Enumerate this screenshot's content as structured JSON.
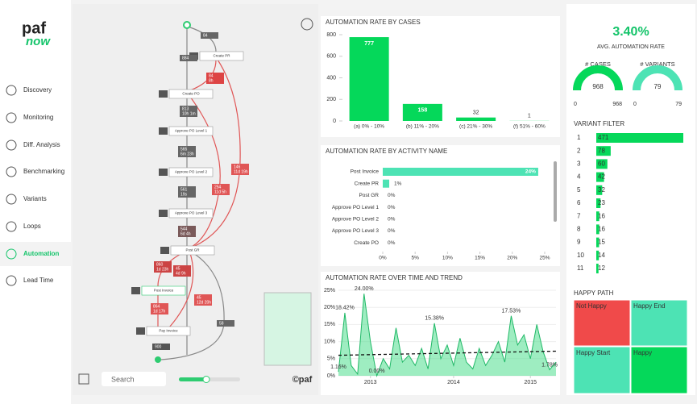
{
  "logo": {
    "top": "paf",
    "bottom": "now"
  },
  "nav": [
    "Discovery",
    "Monitoring",
    "Diff. Analysis",
    "Benchmarking",
    "Variants",
    "Loops",
    "Automation",
    "Lead Time"
  ],
  "process_map": {
    "nodes": [
      "Create PR",
      "Create PO",
      "Approve PO Level 1",
      "Approve PO Level 2",
      "Approve PO Level 3",
      "Post GR",
      "Post Invoice",
      "Pay Invoice"
    ],
    "edges": [
      {
        "count": "84"
      },
      {
        "count": "884"
      },
      {
        "count": "84",
        "time": "8h"
      },
      {
        "count": "813",
        "time": "10h 1m"
      },
      {
        "count": "565",
        "time": "6m 23h"
      },
      {
        "count": "561",
        "time": "19s"
      },
      {
        "count": "544",
        "time": "6d 4h"
      },
      {
        "count": "254",
        "time": "11d 5h"
      },
      {
        "count": "146",
        "time": "11d 19h"
      },
      {
        "count": "860",
        "time": "1d 23h"
      },
      {
        "count": "45",
        "time": "4d 9h"
      },
      {
        "count": "864",
        "time": "1d 17h"
      },
      {
        "count": "45",
        "time": "12d 20h"
      },
      {
        "count": "58"
      },
      {
        "count": "900"
      }
    ],
    "search_placeholder": "Search",
    "copyright": "©paf"
  },
  "charts": [
    {
      "type": "bar",
      "title": "AUTOMATION RATE BY CASES",
      "categories": [
        "(a) 0% - 10%",
        "(b) 11% - 20%",
        "(c) 21% - 30%",
        "(f) 51% - 60%"
      ],
      "values": [
        777,
        158,
        32,
        1
      ],
      "color": "#05d85a",
      "ylim": [
        0,
        800
      ],
      "yticks": [
        0,
        200,
        400,
        600,
        800
      ]
    },
    {
      "type": "hbar",
      "title": "AUTOMATION RATE BY ACTIVITY NAME",
      "categories": [
        "Post Invoice",
        "Create PR",
        "Post GR",
        "Approve PO Level 1",
        "Approve PO Level 2",
        "Approve PO Level 3",
        "Create PO"
      ],
      "values": [
        24,
        1,
        0,
        0,
        0,
        0,
        0
      ],
      "value_labels": [
        "24%",
        "1%",
        "0%",
        "0%",
        "0%",
        "0%",
        "0%"
      ],
      "color": "#4de3b4",
      "xlim": [
        0,
        25.5
      ],
      "xticks": [
        {
          "value": 0,
          "label": "0%"
        },
        {
          "value": 5,
          "label": "5%"
        },
        {
          "value": 10,
          "label": "10%"
        },
        {
          "value": 15,
          "label": "15%"
        },
        {
          "value": 20,
          "label": "20%"
        },
        {
          "value": 25,
          "label": "25%"
        }
      ]
    },
    {
      "type": "area",
      "title": "AUTOMATION RATE OVER TIME AND TREND",
      "values": [
        1.16,
        18.42,
        3,
        0.5,
        24.0,
        10,
        0.0,
        5,
        2,
        14,
        4,
        6,
        3,
        8,
        2,
        15.38,
        5,
        9,
        3,
        11,
        4,
        2,
        8,
        3,
        6,
        10,
        4,
        17.53,
        9,
        12,
        5,
        15,
        7,
        1.78,
        4
      ],
      "value_labels": [
        "1.16%",
        "18.42%",
        null,
        null,
        "24.00%",
        null,
        "0.00%",
        null,
        null,
        null,
        null,
        null,
        null,
        null,
        null,
        "15.38%",
        null,
        null,
        null,
        null,
        null,
        null,
        null,
        null,
        null,
        null,
        null,
        "17.53%",
        null,
        null,
        null,
        null,
        null,
        "1.78%",
        null
      ],
      "trend": [
        6,
        7.2
      ],
      "color": "#3ddc84",
      "ylim": [
        0,
        25
      ],
      "yticks": [
        {
          "value": 0,
          "label": "0%"
        },
        {
          "value": 5,
          "label": "5%"
        },
        {
          "value": 10,
          "label": "10%"
        },
        {
          "value": 15,
          "label": "15%"
        },
        {
          "value": 20,
          "label": "20%"
        },
        {
          "value": 25,
          "label": "25%"
        }
      ],
      "xticks": [
        {
          "value": 5,
          "label": "2013"
        },
        {
          "value": 18,
          "label": "2014"
        },
        {
          "value": 30,
          "label": "2015"
        }
      ]
    }
  ],
  "kpi": {
    "value": "3.40%",
    "label": "AVG. AUTOMATION RATE"
  },
  "gauges": [
    {
      "title": "# CASES",
      "value": 968,
      "min": 0,
      "max": 968
    },
    {
      "title": "# VARIANTS",
      "value": 79,
      "min": 0,
      "max": 79
    }
  ],
  "variant_filter": {
    "title": "VARIANT FILTER",
    "ids": [
      "1",
      "2",
      "3",
      "4",
      "5",
      "6",
      "7",
      "8",
      "9",
      "10",
      "11"
    ],
    "values": [
      471,
      78,
      60,
      42,
      32,
      23,
      16,
      16,
      15,
      14,
      12
    ],
    "max": 471
  },
  "happy_path": {
    "title": "HAPPY PATH",
    "cells": [
      "Not Happy",
      "Happy End",
      "Happy Start",
      "Happy"
    ]
  }
}
